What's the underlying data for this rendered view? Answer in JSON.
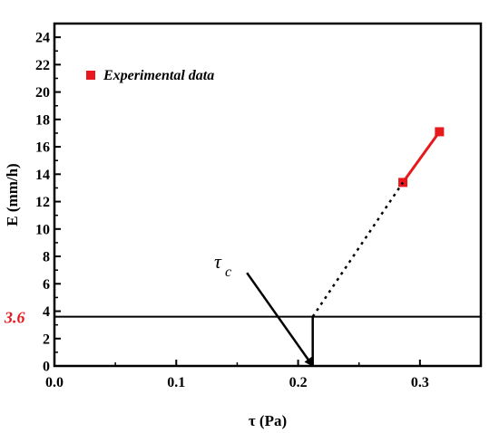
{
  "chart_data": {
    "type": "line",
    "xlabel": "τ (Pa)",
    "ylabel": "E (mm/h)",
    "xlim": [
      0.0,
      0.35
    ],
    "ylim": [
      0,
      25
    ],
    "x_ticks": [
      0.0,
      0.1,
      0.2,
      0.3
    ],
    "x_tick_labels": [
      "0.0",
      "0.1",
      "0.2",
      "0.3"
    ],
    "y_ticks": [
      0,
      2,
      4,
      6,
      8,
      10,
      12,
      14,
      16,
      18,
      20,
      22,
      24
    ],
    "y_tick_labels": [
      "0",
      "2",
      "4",
      "6",
      "8",
      "10",
      "12",
      "14",
      "16",
      "18",
      "20",
      "22",
      "24"
    ],
    "grid": false,
    "legend": {
      "placement": "top-left",
      "entry": "Experimental data",
      "marker_color": "#e8191c"
    },
    "series": [
      {
        "name": "Experimental data",
        "color": "#e8191c",
        "style": "solid",
        "marker": "square",
        "x": [
          0.286,
          0.316
        ],
        "y": [
          13.4,
          17.1
        ]
      },
      {
        "color": "#000000",
        "style": "dotted",
        "x": [
          0.212,
          0.286
        ],
        "y": [
          3.6,
          13.4
        ]
      }
    ],
    "annotations": {
      "threshold_value": 3.6,
      "threshold_label": "3.6",
      "threshold_color": "#e8191c",
      "critical_x": 0.212,
      "arrow_start": [
        0.158,
        6.8
      ],
      "arrow_end": [
        0.212,
        0.0
      ],
      "tau_symbol": "τ",
      "tau_subscript": "c"
    }
  }
}
